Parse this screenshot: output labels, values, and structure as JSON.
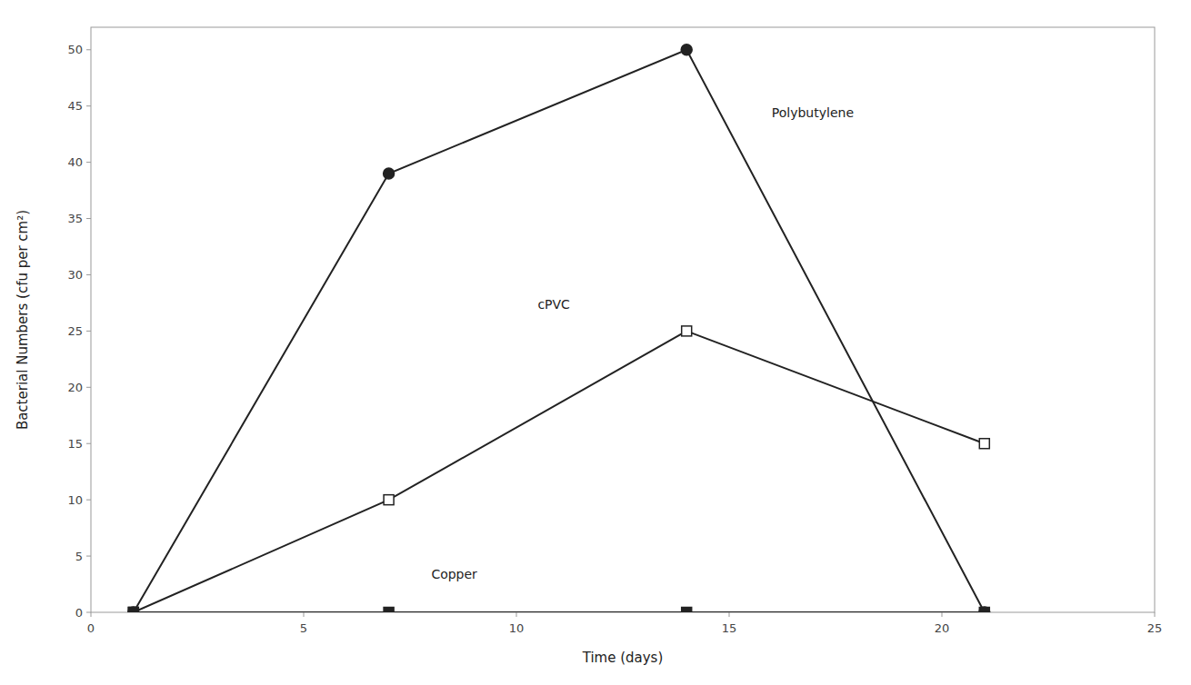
{
  "chart_data": {
    "type": "line",
    "x_label": "Time (days)",
    "y_label": "Bacterial Numbers (cfu per cm²)",
    "x": [
      1,
      7,
      14,
      21
    ],
    "series": [
      {
        "color": "#222222",
        "marker": "circle",
        "values": [
          0,
          39,
          50,
          0
        ]
      },
      {
        "color": "#222222",
        "marker": "square-open",
        "values": [
          0,
          10,
          25,
          15
        ]
      },
      {
        "color": "#222222",
        "marker": "square",
        "values": [
          0,
          0,
          0,
          0
        ]
      }
    ],
    "annotations": [
      {
        "text": "Polybutylene",
        "x": 16,
        "y": 44
      },
      {
        "text": "cPVC",
        "x": 10.5,
        "y": 27
      },
      {
        "text": "Copper",
        "x": 8,
        "y": 3
      }
    ],
    "xlim": [
      0,
      25
    ],
    "ylim": [
      0,
      52
    ],
    "xticks": [
      0,
      5,
      10,
      15,
      20,
      25
    ],
    "yticks": [
      0,
      5,
      10,
      15,
      20,
      25,
      30,
      35,
      40,
      45,
      50
    ],
    "grid": false
  }
}
